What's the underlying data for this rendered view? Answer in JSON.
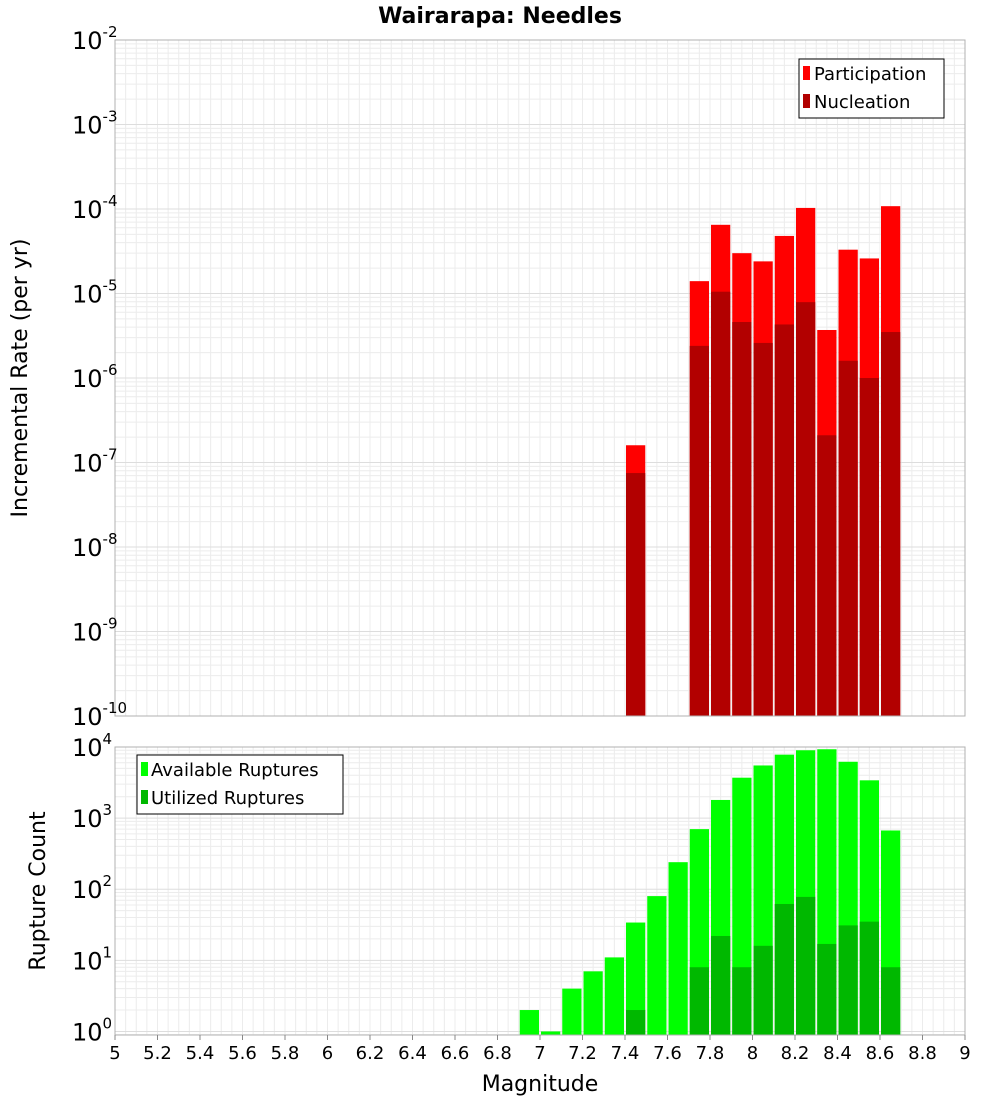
{
  "chart_data": [
    {
      "type": "bar",
      "title": "Wairarapa: Needles",
      "ylabel": "Incremental Rate (per yr)",
      "xlabel": "",
      "yscale": "log",
      "ylim_exponents": [
        -10,
        -2
      ],
      "ytick_base": "10",
      "ytick_exponents": [
        "-10",
        "-9",
        "-8",
        "-7",
        "-6",
        "-5",
        "-4",
        "-3",
        "-2"
      ],
      "xlim": [
        5,
        9
      ],
      "bin_width": 0.1,
      "legend_position": "top-right",
      "series": [
        {
          "name": "Participation",
          "color": "#ff0000",
          "magnitudes": [
            7.45,
            7.75,
            7.85,
            7.95,
            8.05,
            8.15,
            8.25,
            8.35,
            8.45,
            8.55,
            8.65
          ],
          "values": [
            1.6e-07,
            1.4e-05,
            6.5e-05,
            3e-05,
            2.4e-05,
            4.8e-05,
            0.000103,
            3.7e-06,
            3.3e-05,
            2.6e-05,
            0.000108
          ]
        },
        {
          "name": "Nucleation",
          "color": "#b20000",
          "magnitudes": [
            7.45,
            7.75,
            7.85,
            7.95,
            8.05,
            8.15,
            8.25,
            8.35,
            8.45,
            8.55,
            8.65
          ],
          "values": [
            7.5e-08,
            2.4e-06,
            1.05e-05,
            4.6e-06,
            2.6e-06,
            4.3e-06,
            7.9e-06,
            2.1e-07,
            1.6e-06,
            1e-06,
            3.5e-06
          ]
        }
      ]
    },
    {
      "type": "bar",
      "ylabel": "Rupture Count",
      "xlabel": "Magnitude",
      "yscale": "log",
      "ylim_exponents": [
        -0.05,
        4
      ],
      "ytick_base": "10",
      "ytick_exponents": [
        "0",
        "1",
        "2",
        "3",
        "4"
      ],
      "xlim": [
        5,
        9
      ],
      "bin_width": 0.1,
      "xticks": [
        "5",
        "5.2",
        "5.4",
        "5.6",
        "5.8",
        "6",
        "6.2",
        "6.4",
        "6.6",
        "6.8",
        "7",
        "7.2",
        "7.4",
        "7.6",
        "7.8",
        "8",
        "8.2",
        "8.4",
        "8.6",
        "8.8",
        "9"
      ],
      "legend_position": "top-left",
      "series": [
        {
          "name": "Available Ruptures",
          "color": "#00ff00",
          "magnitudes": [
            6.95,
            7.05,
            7.15,
            7.25,
            7.35,
            7.45,
            7.55,
            7.65,
            7.75,
            7.85,
            7.95,
            8.05,
            8.15,
            8.25,
            8.35,
            8.45,
            8.55,
            8.65
          ],
          "values": [
            2,
            1,
            4,
            7,
            11,
            34,
            80,
            240,
            700,
            1800,
            3700,
            5500,
            7800,
            9000,
            9300,
            6200,
            3400,
            670
          ]
        },
        {
          "name": "Utilized Ruptures",
          "color": "#00b800",
          "magnitudes": [
            7.45,
            7.75,
            7.85,
            7.95,
            8.05,
            8.15,
            8.25,
            8.35,
            8.45,
            8.55,
            8.65
          ],
          "values": [
            2,
            8,
            22,
            8,
            16,
            62,
            78,
            17,
            31,
            35,
            8
          ]
        }
      ]
    }
  ]
}
